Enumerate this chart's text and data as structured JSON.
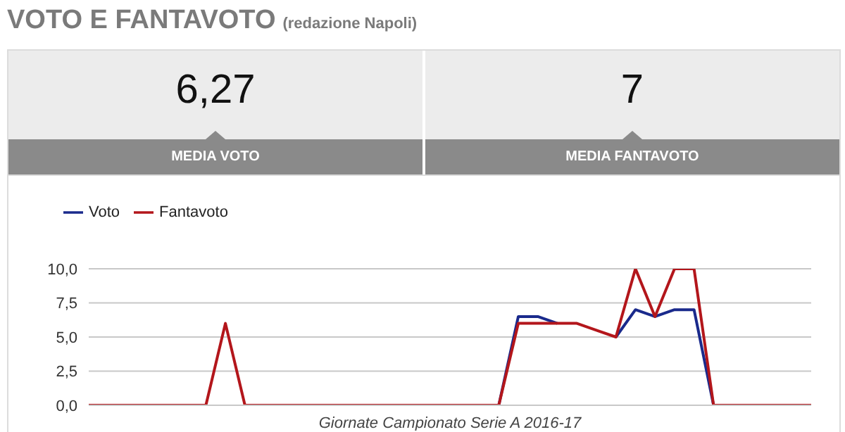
{
  "chart_data": [
    {
      "type": "other",
      "title": "VOTO E FANTAVOTO",
      "subtitle": "(redazione Napoli)",
      "annotations": [
        "6,27",
        "MEDIA VOTO",
        "7",
        "MEDIA FANTAVOTO"
      ]
    },
    {
      "type": "line",
      "xlabel": "Giornate Campionato Serie A 2016-17",
      "categories": [
        null,
        null,
        null,
        null,
        null,
        null,
        null,
        null,
        null,
        null,
        null,
        null,
        null,
        null,
        null,
        null,
        null,
        null,
        null,
        null,
        null,
        null,
        null,
        null,
        null,
        null,
        null,
        null,
        null,
        null,
        null,
        null,
        null,
        null,
        null,
        null,
        null,
        null
      ],
      "series": [
        {
          "name": "Voto",
          "color": "#1a2a8c",
          "values": [
            null,
            null,
            null,
            null,
            null,
            null,
            null,
            null,
            null,
            null,
            null,
            null,
            null,
            null,
            null,
            null,
            null,
            null,
            null,
            null,
            null,
            0,
            6.5,
            6.5,
            6,
            null,
            null,
            5,
            7,
            6.5,
            7,
            7,
            0,
            null,
            null,
            null,
            null,
            null
          ]
        },
        {
          "name": "Fantavoto",
          "color": "#b3161b",
          "values": [
            0,
            0,
            0,
            0,
            0,
            0,
            0,
            6,
            0,
            0,
            0,
            0,
            0,
            0,
            0,
            0,
            0,
            0,
            0,
            0,
            0,
            0,
            6,
            6,
            6,
            6,
            5.5,
            5,
            10,
            6.5,
            10,
            10,
            0,
            0,
            0,
            0,
            0,
            0
          ]
        }
      ],
      "ylim": [
        0,
        10
      ],
      "yticks": [
        {
          "value": 0,
          "label": "0,0"
        },
        {
          "value": 2.5,
          "label": "2,5"
        },
        {
          "value": 5,
          "label": "5,0"
        },
        {
          "value": 7.5,
          "label": "7,5"
        },
        {
          "value": 10,
          "label": "10,0"
        }
      ],
      "grid": "y",
      "legend": "top left",
      "marker": "none",
      "line_style": "solid",
      "tick_labels": "y"
    }
  ]
}
